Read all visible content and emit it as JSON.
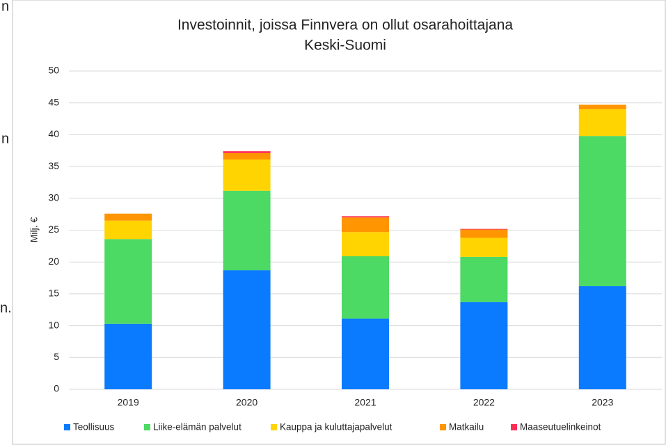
{
  "side_text": [
    "n",
    "n",
    "n."
  ],
  "chart_data": {
    "type": "stacked_bar",
    "title": "Investoinnit, joissa Finnvera on ollut osarahoittajana",
    "subtitle": "Keski-Suomi",
    "y_label": "Milj. €",
    "categories": [
      "2019",
      "2020",
      "2021",
      "2022",
      "2023"
    ],
    "series": [
      {
        "name": "Teollisuus",
        "color": "#0a7bff",
        "values": [
          10.3,
          18.7,
          11.1,
          13.7,
          16.2
        ]
      },
      {
        "name": "Liike-elämän palvelut",
        "color": "#4cd964",
        "values": [
          13.3,
          12.5,
          9.8,
          7.1,
          23.6
        ]
      },
      {
        "name": "Kauppa ja kuluttajapalvelut",
        "color": "#ffd400",
        "values": [
          2.9,
          4.9,
          3.8,
          3.0,
          4.2
        ]
      },
      {
        "name": "Matkailu",
        "color": "#ff9500",
        "values": [
          1.1,
          1.0,
          2.3,
          1.3,
          0.7
        ]
      },
      {
        "name": "Maaseutuelinkeinot",
        "color": "#ff2d55",
        "values": [
          0,
          0.3,
          0.2,
          0.1,
          0
        ]
      }
    ],
    "ylim": [
      0,
      50
    ],
    "yticks": [
      0,
      5,
      10,
      15,
      20,
      25,
      30,
      35,
      40,
      45,
      50
    ],
    "grid": true,
    "legend": "bottom"
  }
}
